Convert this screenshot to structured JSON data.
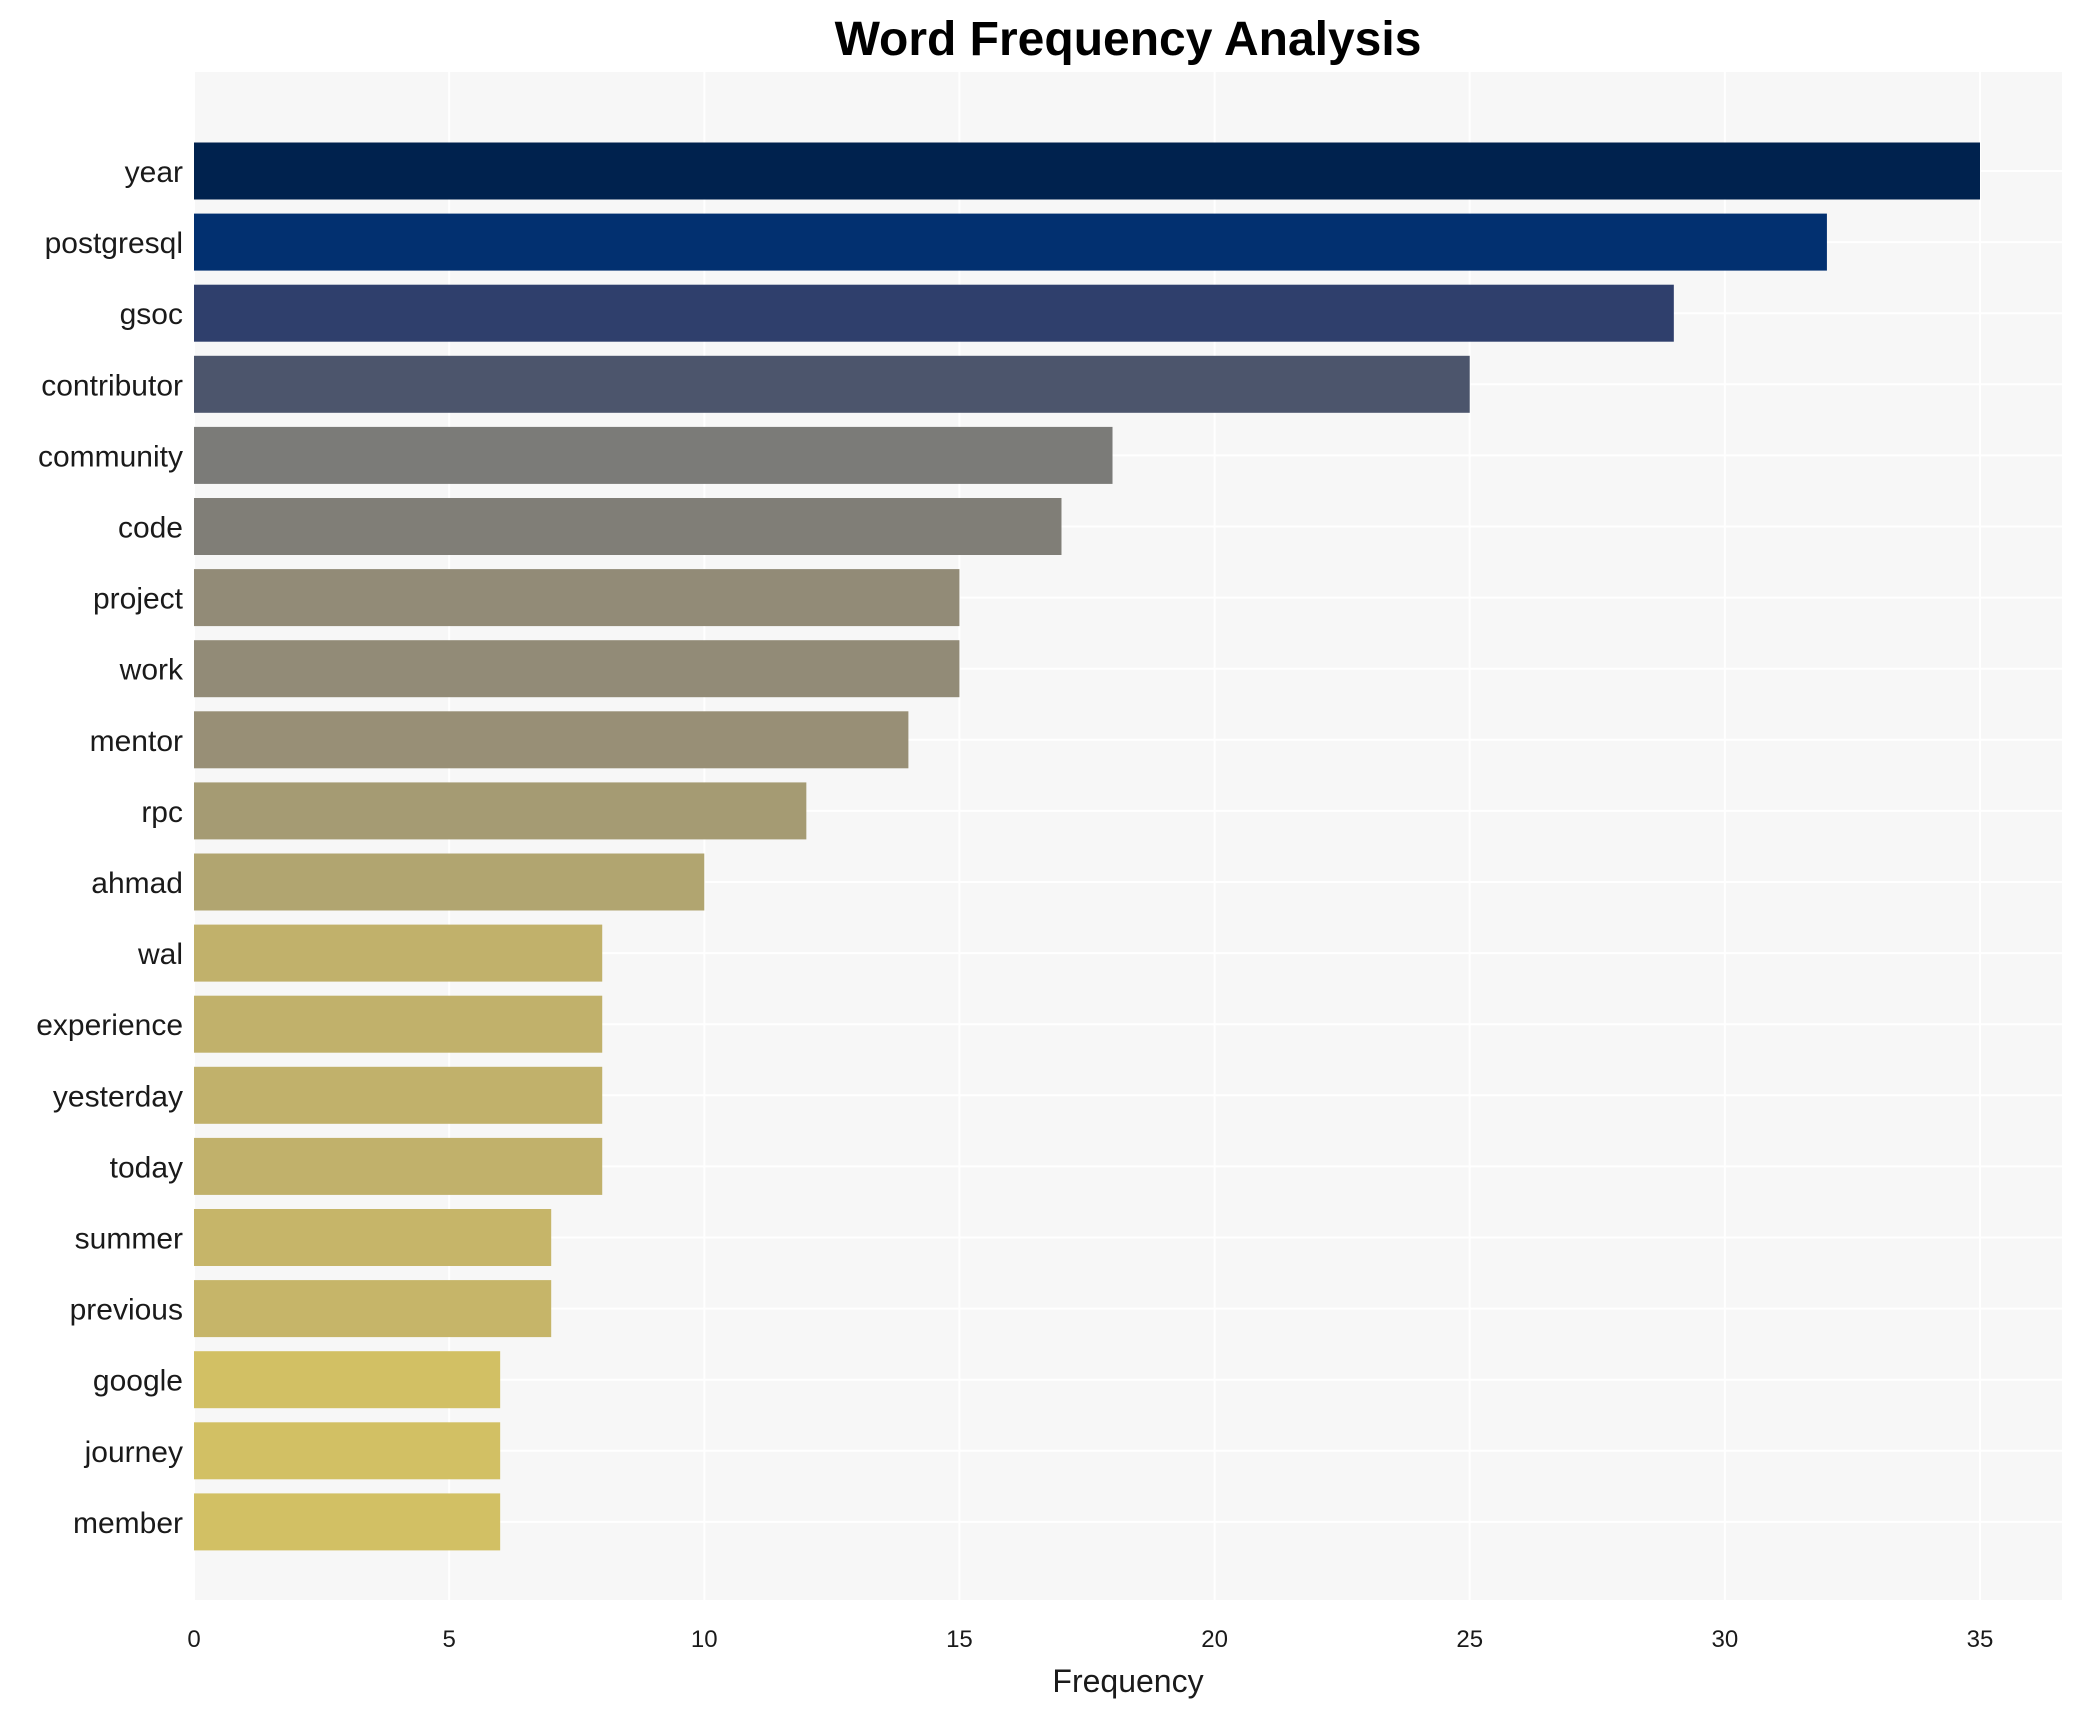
{
  "chart_data": {
    "type": "bar",
    "orientation": "horizontal",
    "title": "Word Frequency Analysis",
    "xlabel": "Frequency",
    "ylabel": "",
    "xlim": [
      0,
      36.8
    ],
    "x_ticks": [
      0,
      5,
      10,
      15,
      20,
      25,
      30,
      35
    ],
    "grid": true,
    "legend": "none",
    "background_color": "#f7f7f7",
    "categories": [
      "year",
      "postgresql",
      "gsoc",
      "contributor",
      "community",
      "code",
      "project",
      "work",
      "mentor",
      "rpc",
      "ahmad",
      "wal",
      "experience",
      "yesterday",
      "today",
      "summer",
      "previous",
      "google",
      "journey",
      "member"
    ],
    "values": [
      35,
      32,
      29,
      25,
      18,
      17,
      15,
      15,
      14,
      12,
      10,
      8,
      8,
      8,
      8,
      7,
      7,
      6,
      6,
      6
    ],
    "colors": [
      "#00224e",
      "#023070",
      "#2f3f6c",
      "#4c556c",
      "#7b7b78",
      "#807e77",
      "#928b77",
      "#928b77",
      "#988f76",
      "#a59b73",
      "#b1a570",
      "#c1b16b",
      "#c1b16b",
      "#c1b16b",
      "#c1b16b",
      "#c6b569",
      "#c6b569",
      "#d2c064",
      "#d2c064",
      "#d2c064"
    ]
  }
}
